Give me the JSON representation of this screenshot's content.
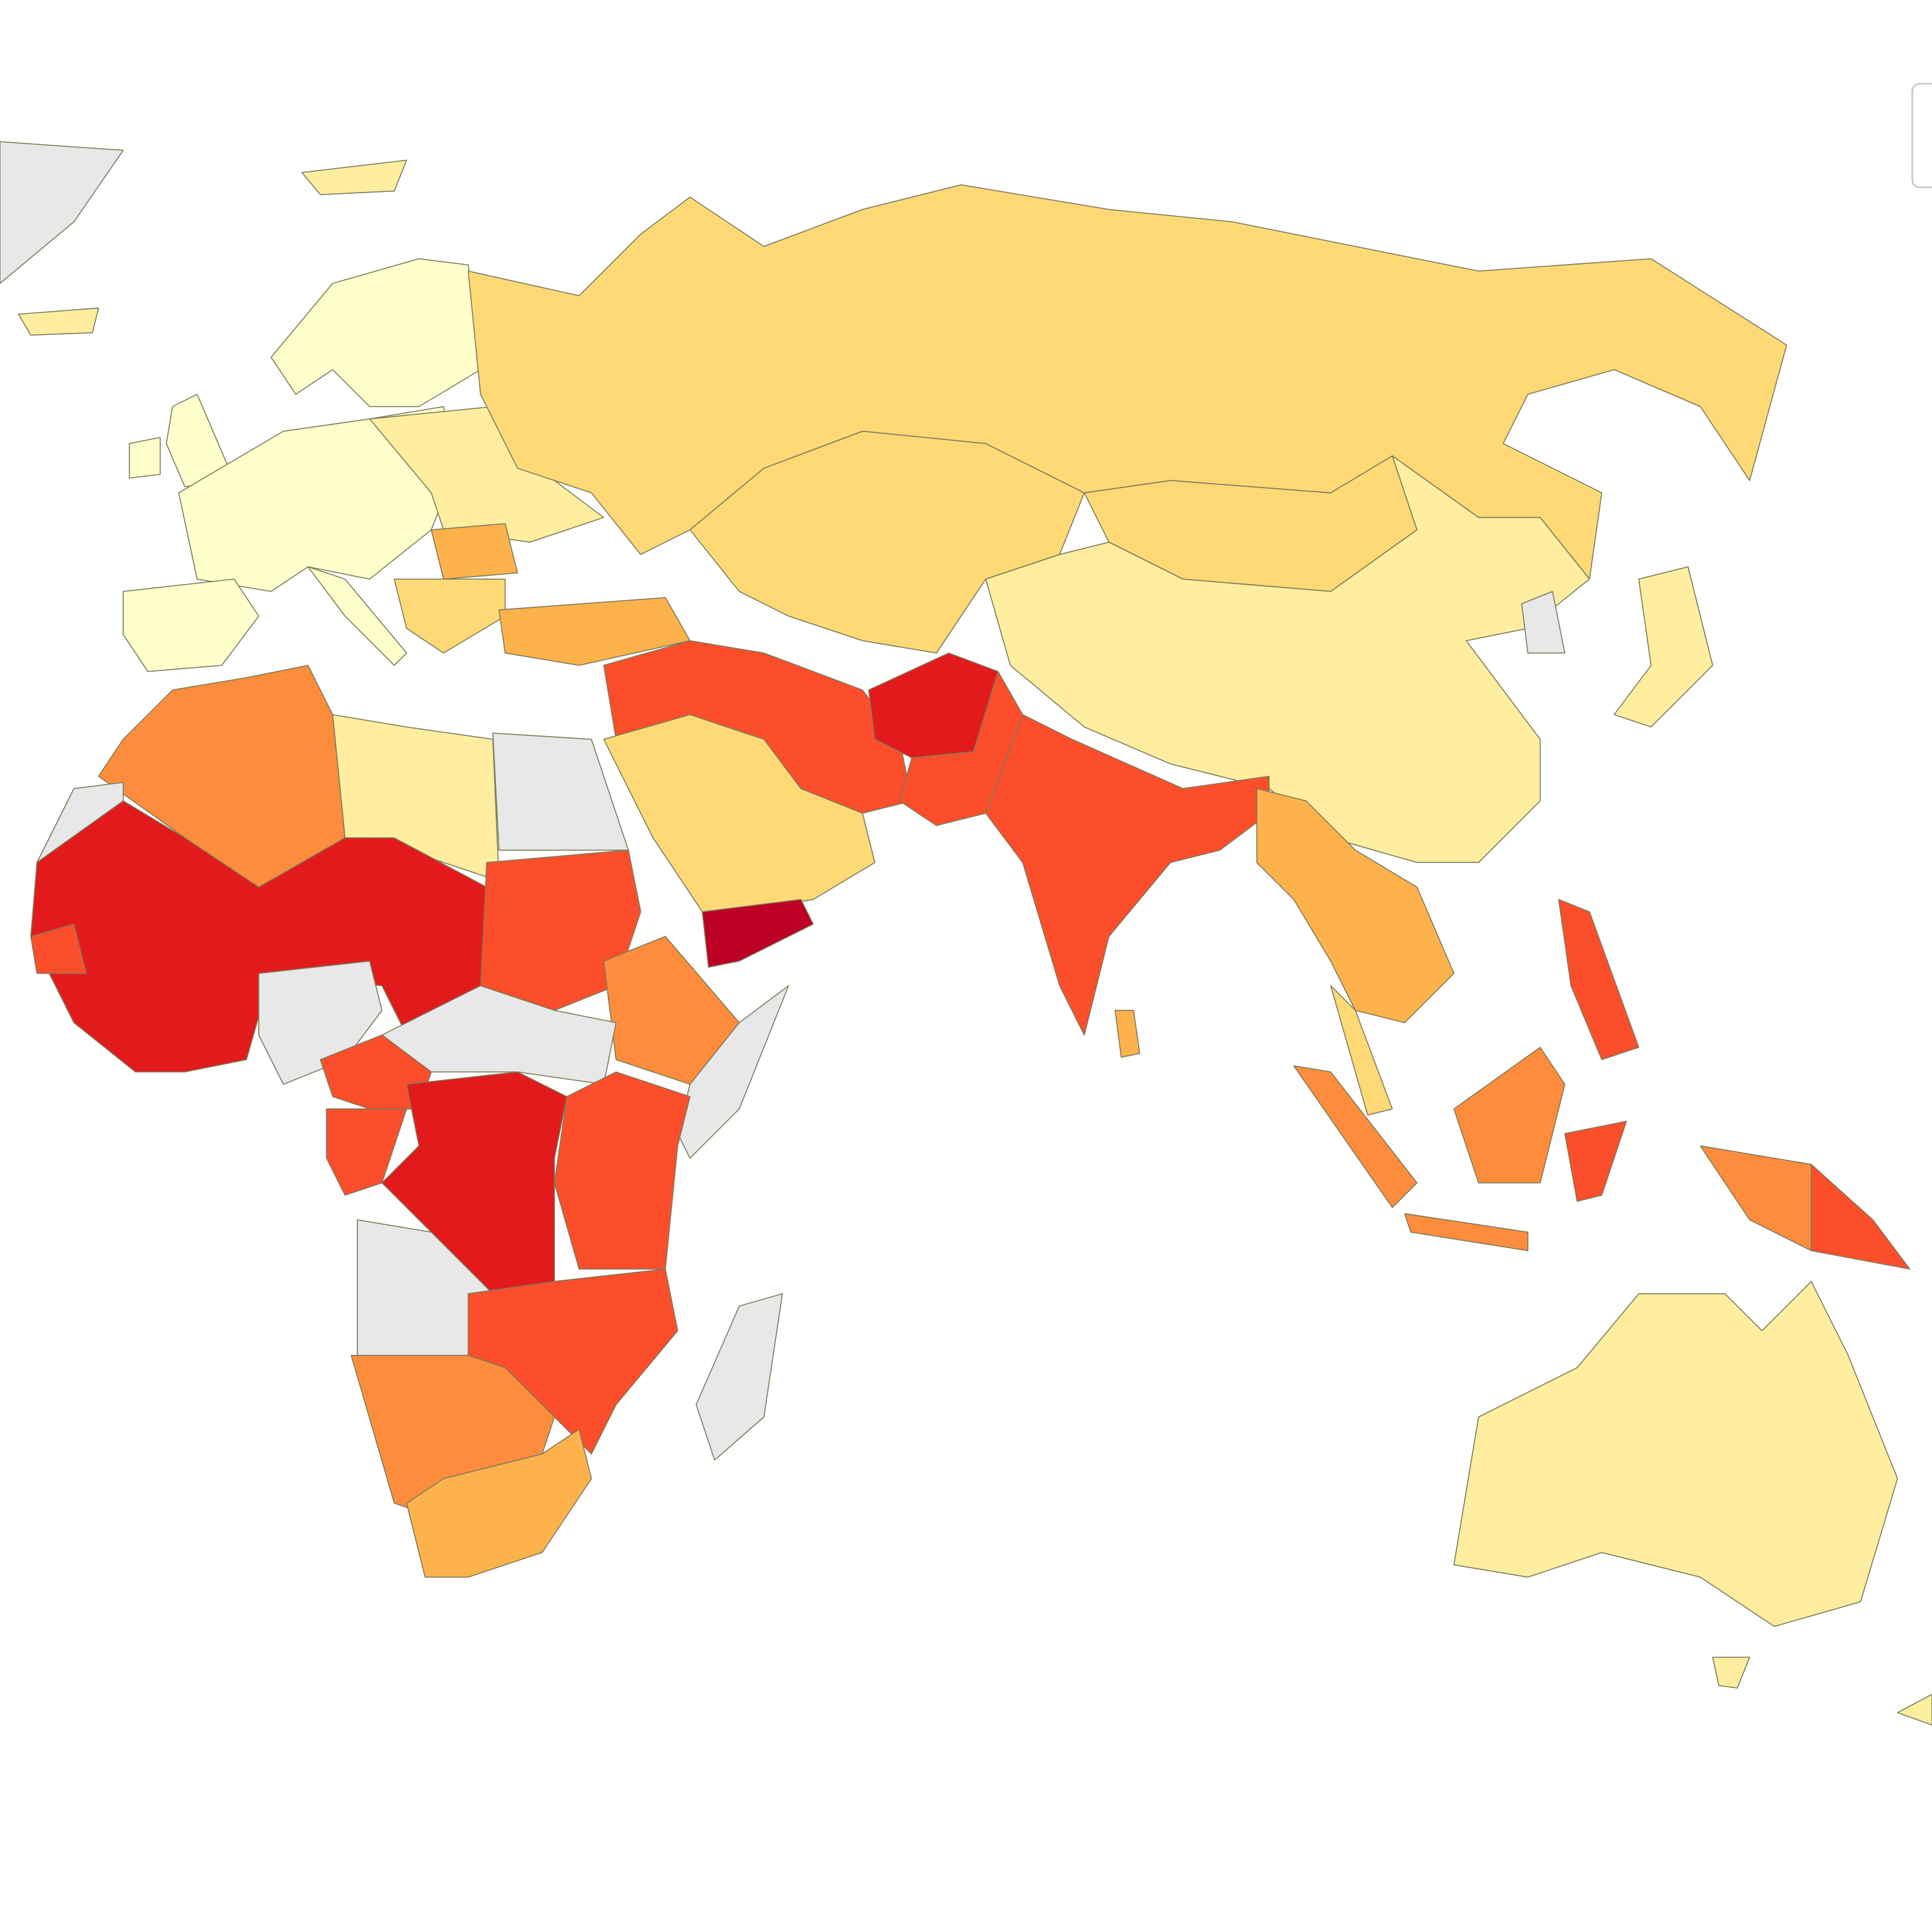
{
  "map": {
    "palette": [
      "#ffffcc",
      "#ffeda0",
      "#fed976",
      "#feb24c",
      "#fd8d3c",
      "#fc4e2a",
      "#e31a1c",
      "#bd0026"
    ],
    "no_data_color": "#e8e8e8"
  }
}
